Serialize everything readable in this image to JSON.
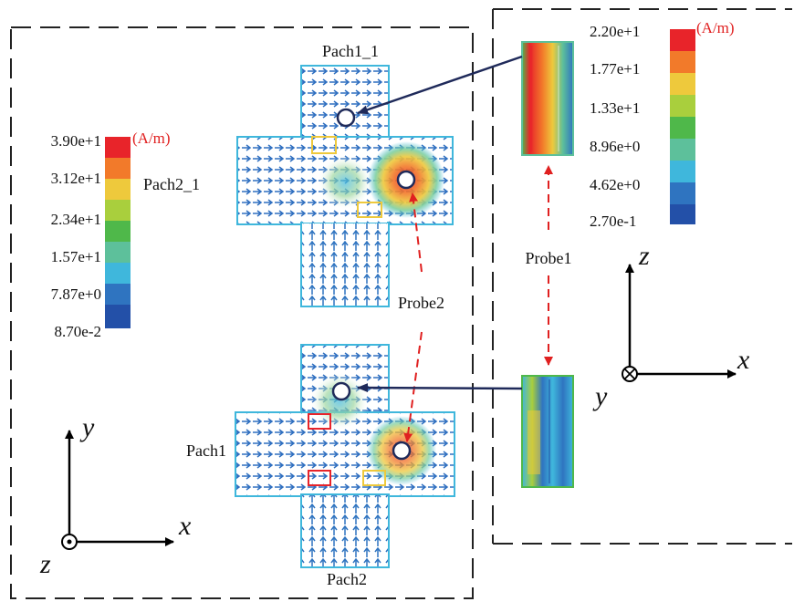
{
  "colors": {
    "scale": [
      "#e8242a",
      "#f27a2a",
      "#eec93c",
      "#a9cf3d",
      "#4fb84a",
      "#5dc09b",
      "#3fb7dc",
      "#2f74c0",
      "#2350a8"
    ],
    "probe_arrow": "#e02020",
    "pointer_arrow": "#1f2a5a",
    "unit_text": "#e02020"
  },
  "left_panel": {
    "colorbar": {
      "unit": "(A/m)",
      "ticks": [
        "3.90e+1",
        "3.12e+1",
        "2.34e+1",
        "1.57e+1",
        "7.87e+0",
        "8.70e-2"
      ]
    },
    "pach2_1_label": "Pach2_1",
    "pach1_1_label": "Pach1_1",
    "pach1_label": "Pach1",
    "pach2_label": "Pach2",
    "probe2_label": "Probe2",
    "axes": {
      "y": "y",
      "x": "x",
      "z": "z",
      "z_symbol": "out-of-page-dot"
    }
  },
  "right_panel": {
    "colorbar": {
      "unit": "(A/m)",
      "ticks": [
        "2.20e+1",
        "1.77e+1",
        "1.33e+1",
        "8.96e+0",
        "4.62e+0",
        "2.70e-1"
      ]
    },
    "probe1_label": "Probe1",
    "axes": {
      "z": "z",
      "x": "x",
      "y": "y",
      "y_symbol": "into-page-cross"
    }
  }
}
